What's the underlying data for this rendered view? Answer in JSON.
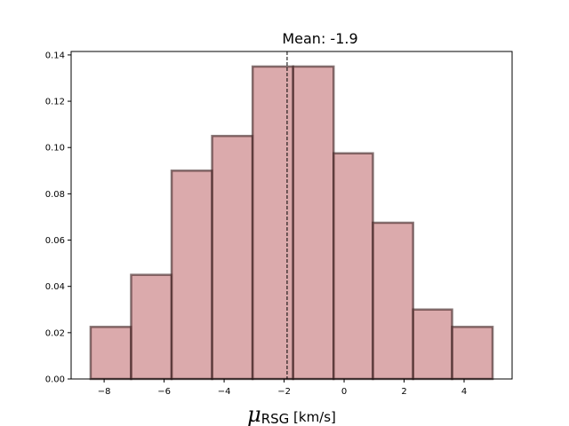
{
  "chart_data": {
    "type": "bar",
    "title": "Mean: -1.9",
    "xlabel_symbol": "μ",
    "xlabel_subscript": "RSG",
    "xlabel_unit": " [km/s]",
    "xlim": [
      -9.1,
      5.6
    ],
    "ylim": [
      0,
      0.1415
    ],
    "xticks": [
      -8,
      -6,
      -4,
      -2,
      0,
      2,
      4
    ],
    "xtick_labels": [
      "−8",
      "−6",
      "−4",
      "−2",
      "0",
      "2",
      "4"
    ],
    "yticks": [
      0,
      0.02,
      0.04,
      0.06,
      0.08,
      0.1,
      0.12,
      0.14
    ],
    "ytick_labels": [
      "0.00",
      "0.02",
      "0.04",
      "0.06",
      "0.08",
      "0.10",
      "0.12",
      "0.14"
    ],
    "bin_edges": [
      -8.45,
      -7.1,
      -5.75,
      -4.4,
      -3.05,
      -1.7,
      -0.35,
      0.96,
      2.3,
      3.6,
      4.95
    ],
    "values": [
      0.0225,
      0.045,
      0.09,
      0.105,
      0.135,
      0.135,
      0.0975,
      0.0675,
      0.03,
      0.0225
    ],
    "mean": -1.9,
    "bar_color": "#c87d7f",
    "edge_color": "#3a1f1f",
    "grid": false
  }
}
